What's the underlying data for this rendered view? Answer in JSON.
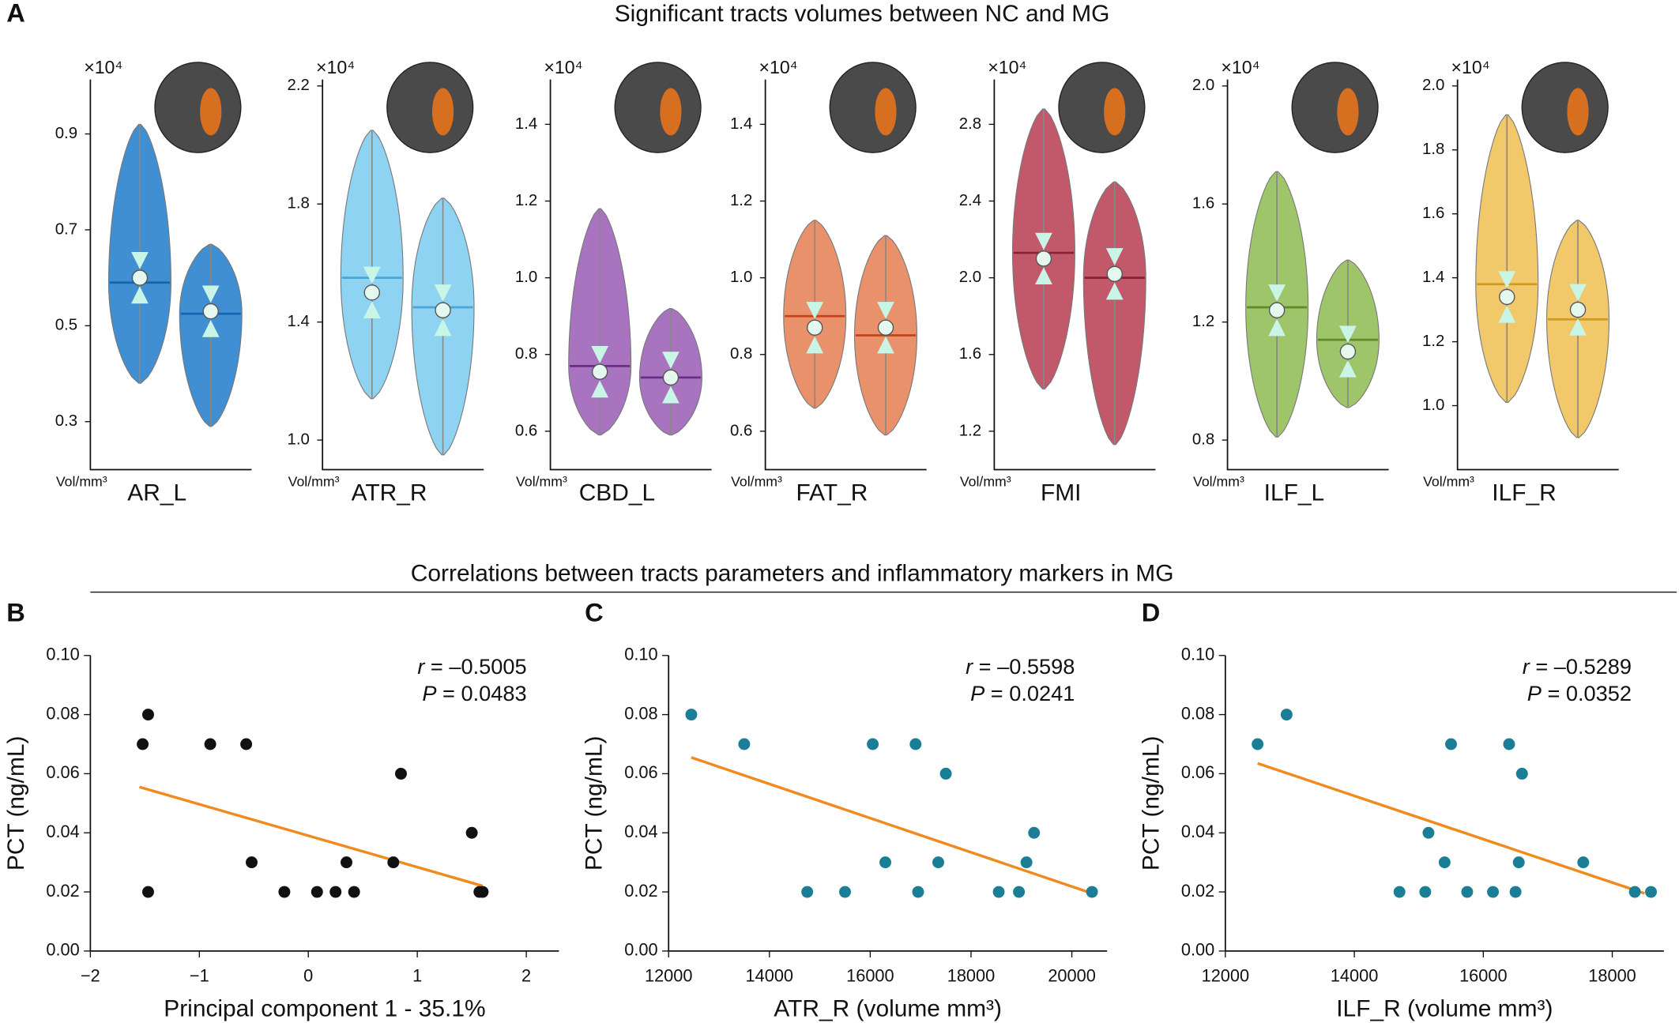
{
  "sections": [
    {
      "letter": "A",
      "title": "Significant tracts volumes between NC and MG"
    },
    {
      "title": "Correlations between tracts parameters and inflammatory markers in MG"
    }
  ],
  "chart_data": [
    {
      "type": "violin",
      "label": "AR_L",
      "multiplier": "×10⁴",
      "y_label": "Vol/mm³",
      "color": "#3f8fd2",
      "median_color": "#1565b0",
      "ylim": [
        0.2,
        1.0
      ],
      "yticks": [
        0.3,
        0.5,
        0.7,
        0.9
      ],
      "groups": [
        {
          "min": 0.38,
          "max": 0.92,
          "median": 0.59,
          "mean": 0.6
        },
        {
          "min": 0.29,
          "max": 0.67,
          "median": 0.525,
          "mean": 0.53
        }
      ]
    },
    {
      "type": "violin",
      "label": "ATR_R",
      "multiplier": "×10⁴",
      "y_label": "Vol/mm³",
      "color": "#8fd3f2",
      "median_color": "#4aa6d6",
      "ylim": [
        0.9,
        2.2
      ],
      "yticks": [
        {
          "value": 1.0,
          "label": "1.0"
        },
        1.4,
        1.8,
        2.2
      ],
      "groups": [
        {
          "min": 1.14,
          "max": 2.05,
          "median": 1.55,
          "mean": 1.5
        },
        {
          "min": 0.95,
          "max": 1.82,
          "median": 1.45,
          "mean": 1.44
        }
      ]
    },
    {
      "type": "violin",
      "label": "CBD_L",
      "multiplier": "×10⁴",
      "y_label": "Vol/mm³",
      "color": "#a874c0",
      "median_color": "#6a2d8a",
      "ylim": [
        0.5,
        1.5
      ],
      "yticks": [
        0.6,
        0.8,
        {
          "value": 1.0,
          "label": "1.0"
        },
        1.2,
        1.4
      ],
      "groups": [
        {
          "min": 0.59,
          "max": 1.18,
          "median": 0.77,
          "mean": 0.755
        },
        {
          "min": 0.59,
          "max": 0.92,
          "median": 0.74,
          "mean": 0.74
        }
      ]
    },
    {
      "type": "violin",
      "label": "FAT_R",
      "multiplier": "×10⁴",
      "y_label": "Vol/mm³",
      "color": "#e9916b",
      "median_color": "#c8401a",
      "ylim": [
        0.5,
        1.5
      ],
      "yticks": [
        0.6,
        0.8,
        {
          "value": 1.0,
          "label": "1.0"
        },
        1.2,
        1.4
      ],
      "groups": [
        {
          "min": 0.66,
          "max": 1.15,
          "median": 0.9,
          "mean": 0.87
        },
        {
          "min": 0.59,
          "max": 1.11,
          "median": 0.85,
          "mean": 0.87
        }
      ]
    },
    {
      "type": "violin",
      "label": "FMI",
      "multiplier": "×10⁴",
      "y_label": "Vol/mm³",
      "color": "#c2596b",
      "median_color": "#8c1f33",
      "ylim": [
        1.0,
        3.0
      ],
      "yticks": [
        1.2,
        1.6,
        {
          "value": 2.0,
          "label": "2.0"
        },
        2.4,
        2.8
      ],
      "groups": [
        {
          "min": 1.42,
          "max": 2.88,
          "median": 2.13,
          "mean": 2.1
        },
        {
          "min": 1.13,
          "max": 2.5,
          "median": 2.0,
          "mean": 2.02
        }
      ]
    },
    {
      "type": "violin",
      "label": "ILF_L",
      "multiplier": "×10⁴",
      "y_label": "Vol/mm³",
      "color": "#9fc56b",
      "median_color": "#5e8a28",
      "ylim": [
        0.7,
        2.0
      ],
      "yticks": [
        0.8,
        1.2,
        1.6,
        {
          "value": 2.0,
          "label": "2.0"
        }
      ],
      "groups": [
        {
          "min": 0.81,
          "max": 1.71,
          "median": 1.25,
          "mean": 1.24
        },
        {
          "min": 0.91,
          "max": 1.41,
          "median": 1.14,
          "mean": 1.1
        }
      ]
    },
    {
      "type": "violin",
      "label": "ILF_R",
      "multiplier": "×10⁴",
      "y_label": "Vol/mm³",
      "color": "#f1c96b",
      "median_color": "#d09a20",
      "ylim": [
        0.8,
        2.0
      ],
      "yticks": [
        {
          "value": 1.0,
          "label": "1.0"
        },
        1.2,
        1.4,
        1.6,
        1.8,
        {
          "value": 2.0,
          "label": "2.0"
        }
      ],
      "groups": [
        {
          "min": 1.01,
          "max": 1.91,
          "median": 1.38,
          "mean": 1.34
        },
        {
          "min": 0.9,
          "max": 1.58,
          "median": 1.27,
          "mean": 1.3
        }
      ]
    },
    {
      "type": "scatter",
      "panel": "B",
      "x_label": "Principal component 1 - 35.1%",
      "y_label": "PCT (ng/mL)",
      "color": "#111111",
      "xlim": [
        -2,
        2.3
      ],
      "xticks": [
        {
          "value": -2,
          "label": "−2"
        },
        {
          "value": -1,
          "label": "−1"
        },
        0,
        1,
        2
      ],
      "ylim": [
        0,
        0.1
      ],
      "yticks": [
        {
          "value": 0,
          "label": "0.00"
        },
        0.02,
        0.04,
        0.06,
        0.08,
        {
          "value": 0.1,
          "label": "0.10"
        }
      ],
      "x": [
        -1.52,
        -1.47,
        -1.47,
        -0.9,
        -0.57,
        -0.52,
        -0.22,
        0.08,
        0.25,
        0.35,
        0.42,
        0.78,
        0.85,
        1.5,
        1.57,
        1.6
      ],
      "y": [
        0.07,
        0.08,
        0.02,
        0.07,
        0.07,
        0.03,
        0.02,
        0.02,
        0.02,
        0.03,
        0.02,
        0.03,
        0.06,
        0.04,
        0.02,
        0.02
      ],
      "fit": {
        "color": "#f08a1e",
        "x": [
          -1.55,
          1.6
        ],
        "y": [
          0.0555,
          0.022
        ]
      },
      "annotations": [
        {
          "symbol": "r",
          "text": " = –0.5005"
        },
        {
          "symbol": "P",
          "text": " = 0.0483"
        }
      ]
    },
    {
      "type": "scatter",
      "panel": "C",
      "x_label": "ATR_R (volume mm³)",
      "y_label": "PCT (ng/mL)",
      "color": "#1a7f96",
      "xlim": [
        12000,
        20700
      ],
      "xticks": [
        12000,
        14000,
        16000,
        18000,
        20000
      ],
      "ylim": [
        0,
        0.1
      ],
      "yticks": [
        {
          "value": 0,
          "label": "0.00"
        },
        0.02,
        0.04,
        0.06,
        0.08,
        {
          "value": 0.1,
          "label": "0.10"
        }
      ],
      "x": [
        12450,
        13500,
        14750,
        15500,
        16050,
        16300,
        16900,
        16950,
        17350,
        17500,
        18550,
        18950,
        19100,
        19250,
        20400
      ],
      "y": [
        0.08,
        0.07,
        0.02,
        0.02,
        0.07,
        0.03,
        0.07,
        0.02,
        0.03,
        0.06,
        0.02,
        0.02,
        0.03,
        0.04,
        0.02
      ],
      "fit": {
        "color": "#f08a1e",
        "x": [
          12450,
          20400
        ],
        "y": [
          0.0655,
          0.0195
        ]
      },
      "annotations": [
        {
          "symbol": "r",
          "text": " = –0.5598"
        },
        {
          "symbol": "P",
          "text": " = 0.0241"
        }
      ]
    },
    {
      "type": "scatter",
      "panel": "D",
      "x_label": "ILF_R (volume mm³)",
      "y_label": "PCT (ng/mL)",
      "color": "#1a7f96",
      "xlim": [
        12000,
        18800
      ],
      "xticks": [
        12000,
        14000,
        16000,
        18000
      ],
      "ylim": [
        0,
        0.1
      ],
      "yticks": [
        {
          "value": 0,
          "label": "0.00"
        },
        0.02,
        0.04,
        0.06,
        0.08,
        {
          "value": 0.1,
          "label": "0.10"
        }
      ],
      "x": [
        12500,
        12950,
        14700,
        15100,
        15150,
        15400,
        15500,
        15750,
        16150,
        16400,
        16500,
        16550,
        16600,
        17550,
        18350,
        18600
      ],
      "y": [
        0.07,
        0.08,
        0.02,
        0.02,
        0.04,
        0.03,
        0.07,
        0.02,
        0.02,
        0.07,
        0.02,
        0.03,
        0.06,
        0.03,
        0.02,
        0.02
      ],
      "fit": {
        "color": "#f08a1e",
        "x": [
          12500,
          18500
        ],
        "y": [
          0.0635,
          0.0195
        ]
      },
      "annotations": [
        {
          "symbol": "r",
          "text": " = –0.5289"
        },
        {
          "symbol": "P",
          "text": " = 0.0352"
        }
      ]
    }
  ]
}
